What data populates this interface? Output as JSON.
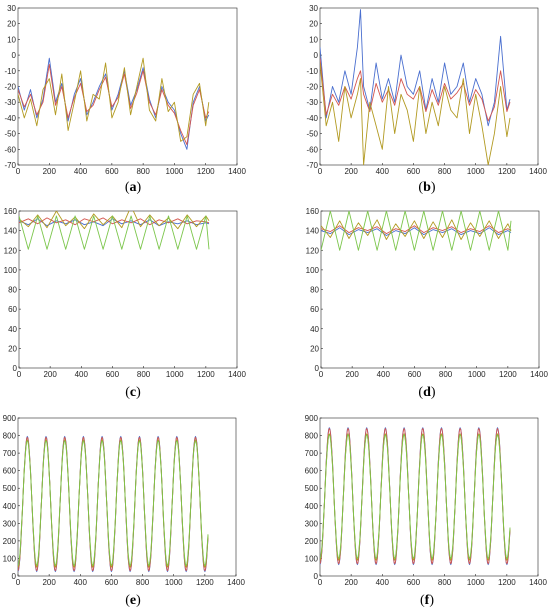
{
  "colors": {
    "blue": "#4a6fcf",
    "red": "#d4564f",
    "olive": "#b29a22",
    "green": "#7cc64c",
    "axis": "#262626"
  },
  "chart_data": [
    {
      "type": "line",
      "panel": "(a)",
      "letter": "a",
      "xlim": [
        0,
        1400
      ],
      "ylim": [
        -70,
        30
      ],
      "xticks": [
        0,
        200,
        400,
        600,
        800,
        1000,
        1200,
        1400
      ],
      "yticks": [
        -70,
        -60,
        -50,
        -40,
        -30,
        -20,
        -10,
        0,
        10,
        20,
        30
      ],
      "series": [
        {
          "color": "#4a6fcf",
          "x": [
            0,
            40,
            80,
            120,
            160,
            200,
            240,
            280,
            320,
            360,
            400,
            440,
            480,
            520,
            560,
            600,
            640,
            680,
            720,
            760,
            800,
            840,
            880,
            920,
            960,
            1000,
            1040,
            1080,
            1120,
            1160,
            1200,
            1220
          ],
          "values": [
            -20,
            -35,
            -22,
            -40,
            -28,
            -2,
            -30,
            -18,
            -42,
            -25,
            -15,
            -38,
            -30,
            -20,
            -12,
            -35,
            -25,
            -10,
            -32,
            -22,
            -8,
            -28,
            -40,
            -20,
            -30,
            -35,
            -50,
            -60,
            -30,
            -20,
            -42,
            -38
          ]
        },
        {
          "color": "#d4564f",
          "x": [
            0,
            40,
            80,
            120,
            160,
            200,
            240,
            280,
            320,
            360,
            400,
            440,
            480,
            520,
            560,
            600,
            640,
            680,
            720,
            760,
            800,
            840,
            880,
            920,
            960,
            1000,
            1040,
            1080,
            1120,
            1160,
            1200,
            1220
          ],
          "values": [
            -22,
            -33,
            -25,
            -38,
            -30,
            -6,
            -32,
            -20,
            -40,
            -27,
            -18,
            -36,
            -32,
            -22,
            -14,
            -33,
            -27,
            -12,
            -34,
            -24,
            -10,
            -30,
            -38,
            -22,
            -32,
            -37,
            -48,
            -57,
            -32,
            -22,
            -40,
            -36
          ]
        },
        {
          "color": "#b29a22",
          "x": [
            0,
            40,
            80,
            120,
            160,
            200,
            240,
            280,
            320,
            360,
            400,
            440,
            480,
            520,
            560,
            600,
            640,
            680,
            720,
            760,
            800,
            840,
            880,
            920,
            960,
            1000,
            1040,
            1080,
            1120,
            1160,
            1200,
            1220
          ],
          "values": [
            -25,
            -40,
            -28,
            -45,
            -22,
            -15,
            -38,
            -12,
            -48,
            -30,
            -10,
            -42,
            -25,
            -28,
            -5,
            -40,
            -30,
            -8,
            -38,
            -20,
            -2,
            -35,
            -42,
            -15,
            -36,
            -30,
            -55,
            -52,
            -25,
            -18,
            -45,
            -30
          ]
        }
      ]
    },
    {
      "type": "line",
      "panel": "(b)",
      "letter": "b",
      "xlim": [
        0,
        1400
      ],
      "ylim": [
        -70,
        30
      ],
      "xticks": [
        0,
        200,
        400,
        600,
        800,
        1000,
        1200,
        1400
      ],
      "yticks": [
        -70,
        -60,
        -50,
        -40,
        -30,
        -20,
        -10,
        0,
        10,
        20,
        30
      ],
      "series": [
        {
          "color": "#4a6fcf",
          "x": [
            0,
            40,
            80,
            120,
            160,
            200,
            240,
            260,
            280,
            320,
            360,
            400,
            440,
            480,
            520,
            560,
            600,
            640,
            680,
            720,
            760,
            800,
            840,
            880,
            920,
            960,
            1000,
            1040,
            1080,
            1120,
            1160,
            1200,
            1220
          ],
          "values": [
            5,
            -40,
            -20,
            -30,
            -10,
            -25,
            5,
            29,
            -20,
            -35,
            -5,
            -28,
            -15,
            -30,
            0,
            -20,
            -25,
            -10,
            -35,
            -15,
            -30,
            -5,
            -25,
            -20,
            -5,
            -30,
            -15,
            -25,
            -45,
            -30,
            12,
            -35,
            -28
          ]
        },
        {
          "color": "#d4564f",
          "x": [
            0,
            40,
            80,
            120,
            160,
            200,
            240,
            260,
            280,
            320,
            360,
            400,
            440,
            480,
            520,
            560,
            600,
            640,
            680,
            720,
            760,
            800,
            840,
            880,
            920,
            960,
            1000,
            1040,
            1080,
            1120,
            1160,
            1200,
            1220
          ],
          "values": [
            -2,
            -38,
            -25,
            -32,
            -20,
            -28,
            -15,
            -10,
            -25,
            -36,
            -18,
            -30,
            -22,
            -32,
            -15,
            -25,
            -28,
            -20,
            -36,
            -22,
            -32,
            -18,
            -28,
            -24,
            -18,
            -32,
            -22,
            -28,
            -42,
            -33,
            -10,
            -36,
            -30
          ]
        },
        {
          "color": "#b29a22",
          "x": [
            0,
            40,
            80,
            120,
            160,
            200,
            240,
            260,
            280,
            320,
            360,
            400,
            440,
            480,
            520,
            560,
            600,
            640,
            680,
            720,
            760,
            800,
            840,
            880,
            920,
            960,
            1000,
            1040,
            1080,
            1120,
            1160,
            1200,
            1220
          ],
          "values": [
            -5,
            -45,
            -30,
            -55,
            -20,
            -40,
            -25,
            -15,
            -70,
            -30,
            -45,
            -60,
            -20,
            -50,
            -25,
            -35,
            -55,
            -20,
            -50,
            -30,
            -45,
            -20,
            -35,
            -40,
            -15,
            -50,
            -25,
            -45,
            -70,
            -50,
            -20,
            -52,
            -40
          ]
        }
      ]
    },
    {
      "type": "line",
      "panel": "(c)",
      "letter": "c",
      "xlim": [
        0,
        1400
      ],
      "ylim": [
        0,
        160
      ],
      "xticks": [
        0,
        200,
        400,
        600,
        800,
        1000,
        1200,
        1400
      ],
      "yticks": [
        0,
        20,
        40,
        60,
        80,
        100,
        120,
        140,
        160
      ],
      "series": [
        {
          "color": "#4a6fcf",
          "x": [
            0,
            60,
            120,
            180,
            240,
            300,
            360,
            420,
            480,
            540,
            600,
            660,
            720,
            780,
            840,
            900,
            960,
            1020,
            1080,
            1140,
            1200,
            1220
          ],
          "values": [
            150,
            146,
            152,
            145,
            150,
            147,
            151,
            146,
            149,
            145,
            152,
            147,
            150,
            146,
            151,
            145,
            149,
            147,
            150,
            146,
            148,
            147
          ]
        },
        {
          "color": "#d4564f",
          "x": [
            0,
            60,
            120,
            180,
            240,
            300,
            360,
            420,
            480,
            540,
            600,
            660,
            720,
            780,
            840,
            900,
            960,
            1020,
            1080,
            1140,
            1200,
            1220
          ],
          "values": [
            148,
            152,
            147,
            153,
            148,
            151,
            146,
            152,
            149,
            153,
            147,
            151,
            148,
            152,
            146,
            151,
            148,
            152,
            147,
            150,
            149,
            148
          ]
        },
        {
          "color": "#b29a22",
          "x": [
            0,
            60,
            120,
            180,
            240,
            300,
            360,
            420,
            480,
            540,
            600,
            660,
            720,
            780,
            840,
            900,
            960,
            1020,
            1080,
            1140,
            1200,
            1220
          ],
          "values": [
            152,
            144,
            156,
            143,
            160,
            145,
            154,
            142,
            157,
            146,
            155,
            143,
            165,
            144,
            156,
            145,
            153,
            142,
            156,
            144,
            155,
            150
          ]
        },
        {
          "color": "#7cc64c",
          "x": [
            0,
            30,
            60,
            90,
            120,
            150,
            180,
            210,
            240,
            270,
            300,
            330,
            360,
            390,
            420,
            450,
            480,
            510,
            540,
            570,
            600,
            630,
            660,
            690,
            720,
            750,
            780,
            810,
            840,
            870,
            900,
            930,
            960,
            990,
            1020,
            1050,
            1080,
            1110,
            1140,
            1170,
            1200,
            1220
          ],
          "values": [
            155,
            138,
            121,
            138,
            155,
            138,
            121,
            138,
            155,
            138,
            121,
            138,
            155,
            138,
            121,
            138,
            155,
            138,
            121,
            138,
            155,
            138,
            121,
            138,
            155,
            138,
            121,
            138,
            155,
            138,
            121,
            138,
            155,
            138,
            121,
            138,
            155,
            138,
            121,
            138,
            155,
            121
          ]
        }
      ]
    },
    {
      "type": "line",
      "panel": "(d)",
      "letter": "d",
      "xlim": [
        0,
        1400
      ],
      "ylim": [
        0,
        160
      ],
      "xticks": [
        0,
        200,
        400,
        600,
        800,
        1000,
        1200,
        1400
      ],
      "yticks": [
        0,
        20,
        40,
        60,
        80,
        100,
        120,
        140,
        160
      ],
      "series": [
        {
          "color": "#4a6fcf",
          "x": [
            0,
            60,
            120,
            180,
            240,
            300,
            360,
            420,
            480,
            540,
            600,
            660,
            720,
            780,
            840,
            900,
            960,
            1020,
            1080,
            1140,
            1200,
            1220
          ],
          "values": [
            140,
            137,
            143,
            136,
            141,
            138,
            142,
            135,
            140,
            137,
            143,
            136,
            141,
            138,
            142,
            136,
            140,
            137,
            143,
            136,
            140,
            138
          ]
        },
        {
          "color": "#d4564f",
          "x": [
            0,
            60,
            120,
            180,
            240,
            300,
            360,
            420,
            480,
            540,
            600,
            660,
            720,
            780,
            840,
            900,
            960,
            1020,
            1080,
            1140,
            1200,
            1220
          ],
          "values": [
            142,
            139,
            145,
            138,
            143,
            140,
            144,
            137,
            142,
            139,
            145,
            138,
            143,
            140,
            144,
            138,
            142,
            139,
            145,
            138,
            142,
            140
          ]
        },
        {
          "color": "#b29a22",
          "x": [
            0,
            60,
            120,
            180,
            240,
            300,
            360,
            420,
            480,
            540,
            600,
            660,
            720,
            780,
            840,
            900,
            960,
            1020,
            1080,
            1140,
            1200,
            1220
          ],
          "values": [
            145,
            133,
            150,
            132,
            148,
            135,
            151,
            131,
            147,
            134,
            150,
            132,
            149,
            133,
            151,
            131,
            148,
            134,
            150,
            132,
            147,
            140
          ]
        },
        {
          "color": "#7cc64c",
          "x": [
            0,
            30,
            60,
            90,
            120,
            150,
            180,
            210,
            240,
            270,
            300,
            330,
            360,
            390,
            420,
            450,
            480,
            510,
            540,
            570,
            600,
            630,
            660,
            690,
            720,
            750,
            780,
            810,
            840,
            870,
            900,
            930,
            960,
            990,
            1020,
            1050,
            1080,
            1110,
            1140,
            1170,
            1200,
            1220
          ],
          "values": [
            120,
            140,
            160,
            140,
            120,
            140,
            160,
            140,
            120,
            140,
            160,
            140,
            120,
            140,
            160,
            140,
            120,
            140,
            160,
            140,
            120,
            140,
            160,
            140,
            120,
            140,
            160,
            140,
            120,
            140,
            160,
            140,
            120,
            140,
            160,
            140,
            120,
            140,
            160,
            140,
            120,
            150
          ]
        }
      ]
    },
    {
      "type": "line",
      "panel": "(e)",
      "letter": "e",
      "xlim": [
        0,
        1400
      ],
      "ylim": [
        0,
        900
      ],
      "xticks": [
        0,
        200,
        400,
        600,
        800,
        1000,
        1200,
        1400
      ],
      "yticks": [
        0,
        100,
        200,
        300,
        400,
        500,
        600,
        700,
        800,
        900
      ],
      "series": [
        {
          "color": "#4a6fcf",
          "peak": 795,
          "trough": 25,
          "period": 120,
          "start": 0,
          "end": 1220
        },
        {
          "color": "#d4564f",
          "peak": 790,
          "trough": 30,
          "period": 120,
          "start": 0,
          "end": 1220
        },
        {
          "color": "#b29a22",
          "peak": 775,
          "trough": 50,
          "period": 120,
          "start": 0,
          "end": 1220
        },
        {
          "color": "#7cc64c",
          "peak": 770,
          "trough": 60,
          "period": 120,
          "start": 0,
          "end": 1220
        }
      ]
    },
    {
      "type": "line",
      "panel": "(f)",
      "letter": "f",
      "xlim": [
        0,
        1400
      ],
      "ylim": [
        0,
        900
      ],
      "xticks": [
        0,
        200,
        400,
        600,
        800,
        1000,
        1200,
        1400
      ],
      "yticks": [
        0,
        100,
        200,
        300,
        400,
        500,
        600,
        700,
        800,
        900
      ],
      "series": [
        {
          "color": "#4a6fcf",
          "peak": 845,
          "trough": 65,
          "period": 120,
          "start": 0,
          "end": 1220
        },
        {
          "color": "#d4564f",
          "peak": 840,
          "trough": 70,
          "period": 120,
          "start": 0,
          "end": 1220
        },
        {
          "color": "#b29a22",
          "peak": 810,
          "trough": 90,
          "period": 120,
          "start": 0,
          "end": 1220
        },
        {
          "color": "#7cc64c",
          "peak": 805,
          "trough": 100,
          "period": 120,
          "start": 0,
          "end": 1220
        }
      ]
    }
  ]
}
